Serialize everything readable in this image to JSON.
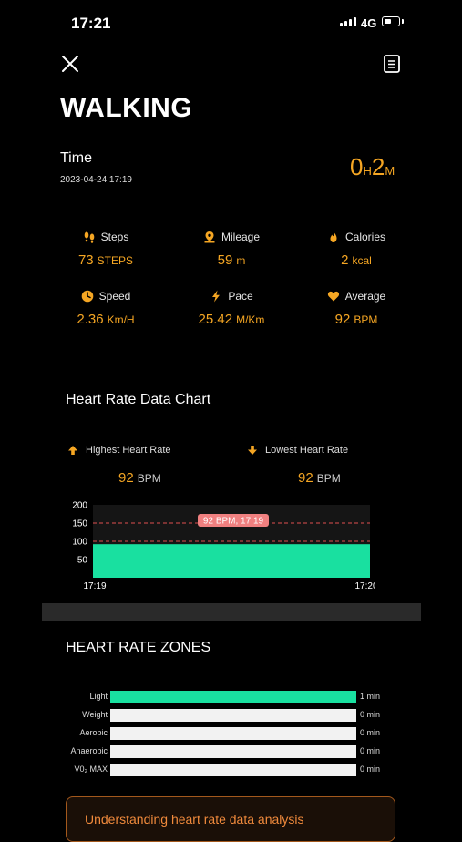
{
  "status_bar": {
    "time": "17:21",
    "network": "4G"
  },
  "header": {
    "title": "WALKING"
  },
  "session": {
    "time_label": "Time",
    "date": "2023-04-24 17:19",
    "duration_hours": "0",
    "duration_h_unit": "H",
    "duration_minutes": "2",
    "duration_m_unit": "M"
  },
  "stats": [
    {
      "label": "Steps",
      "value": "73",
      "unit": "STEPS",
      "icon": "footprints-icon"
    },
    {
      "label": "Mileage",
      "value": "59",
      "unit": "m",
      "icon": "map-pin-icon"
    },
    {
      "label": "Calories",
      "value": "2",
      "unit": "kcal",
      "icon": "flame-icon"
    },
    {
      "label": "Speed",
      "value": "2.36",
      "unit": "Km/H",
      "icon": "speedometer-icon"
    },
    {
      "label": "Pace",
      "value": "25.42",
      "unit": "M/Km",
      "icon": "lightning-icon"
    },
    {
      "label": "Average",
      "value": "92",
      "unit": "BPM",
      "icon": "heart-icon"
    }
  ],
  "heart_rate": {
    "section_title": "Heart Rate Data Chart",
    "highest_label": "Highest Heart Rate",
    "highest_value": "92",
    "highest_unit": "BPM",
    "lowest_label": "Lowest Heart Rate",
    "lowest_value": "92",
    "lowest_unit": "BPM"
  },
  "chart_data": {
    "type": "area",
    "x": [
      "17:19",
      "17:20"
    ],
    "y_ticks": [
      50,
      100,
      150,
      200
    ],
    "ylim": [
      0,
      200
    ],
    "series": [
      {
        "values": [
          92,
          92
        ]
      }
    ],
    "reference_lines": [
      100,
      150
    ],
    "annotation": "92 BPM, 17:19",
    "colors": {
      "fill": "#19e0a0",
      "annotation": "#f08080",
      "reference": "#e05050"
    }
  },
  "zones": {
    "section_title": "HEART RATE ZONES",
    "items": [
      {
        "label": "Light",
        "minutes": "1 min",
        "fraction": 1.0
      },
      {
        "label": "Weight",
        "minutes": "0 min",
        "fraction": 0
      },
      {
        "label": "Aerobic",
        "minutes": "0 min",
        "fraction": 0
      },
      {
        "label": "Anaerobic",
        "minutes": "0 min",
        "fraction": 0
      },
      {
        "label": "V0₂ MAX",
        "minutes": "0 min",
        "fraction": 0
      }
    ]
  },
  "info_card": {
    "text": "Understanding heart rate data analysis"
  },
  "colors": {
    "accent": "#f5a623",
    "zone": "#19e0a0",
    "background": "#000000"
  }
}
